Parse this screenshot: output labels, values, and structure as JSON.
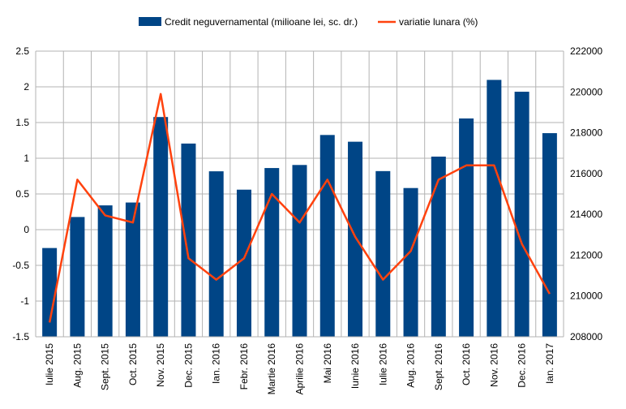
{
  "chart_data": {
    "type": "bar",
    "title": "",
    "xlabel": "",
    "ylabel": "",
    "categories": [
      "Iulie 2015",
      "Aug. 2015",
      "Sept. 2015",
      "Oct. 2015",
      "Nov. 2015",
      "Dec. 2015",
      "Ian. 2016",
      "Febr. 2016",
      "Martie 2016",
      "Aprilie 2016",
      "Mai 2016",
      "Iunie 2016",
      "Iulie 2016",
      "Aug. 2016",
      "Sept. 2016",
      "Oct. 2016",
      "Nov. 2016",
      "Dec. 2016",
      "Ian. 2017"
    ],
    "series": [
      {
        "name": "Credit neguvernamental (milioane lei, sc. dr.)",
        "type": "bar",
        "axis": "right",
        "color": "#004586",
        "values": [
          212350,
          213870,
          214440,
          214580,
          218770,
          217470,
          216110,
          215210,
          216270,
          216420,
          217890,
          217560,
          216120,
          215290,
          216830,
          218700,
          220590,
          220010,
          217980
        ]
      },
      {
        "name": "variatie lunara (%)",
        "type": "line",
        "axis": "left",
        "color": "#ff420e",
        "values": [
          -1.3,
          0.7,
          0.2,
          0.1,
          1.9,
          -0.4,
          -0.7,
          -0.4,
          0.5,
          0.1,
          0.7,
          -0.1,
          -0.7,
          -0.3,
          0.7,
          0.9,
          0.9,
          -0.2,
          -0.9
        ]
      }
    ],
    "left_axis": {
      "min": -1.5,
      "max": 2.5,
      "ticks": [
        "-1.5",
        "-1",
        "-0.5",
        "0",
        "0.5",
        "1",
        "1.5",
        "2",
        "2.5"
      ]
    },
    "right_axis": {
      "min": 208000,
      "max": 222000,
      "ticks": [
        "208000",
        "210000",
        "212000",
        "214000",
        "216000",
        "218000",
        "220000",
        "222000"
      ]
    },
    "grid": true,
    "legend_position": "top-center"
  }
}
